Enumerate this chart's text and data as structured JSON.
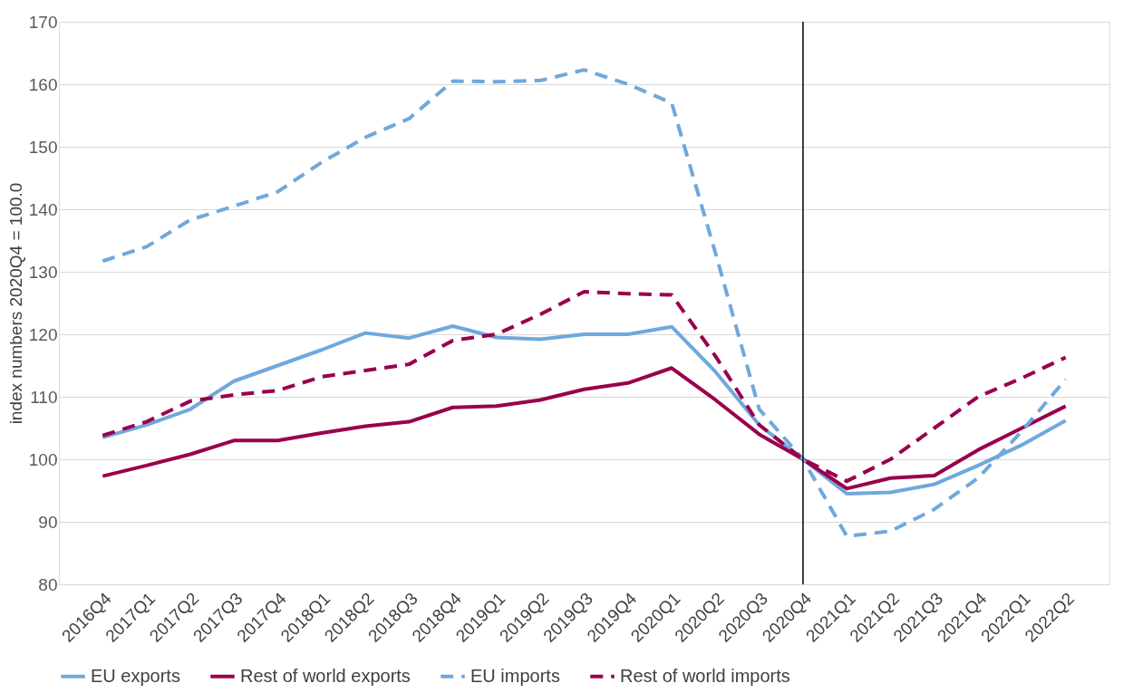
{
  "chart_data": {
    "type": "line",
    "ylabel": "index numbers 2020Q4 = 100.0",
    "categories": [
      "2016Q4",
      "2017Q1",
      "2017Q2",
      "2017Q3",
      "2017Q4",
      "2018Q1",
      "2018Q2",
      "2018Q3",
      "2018Q4",
      "2019Q1",
      "2019Q2",
      "2019Q3",
      "2019Q4",
      "2020Q1",
      "2020Q2",
      "2020Q3",
      "2020Q4",
      "2021Q1",
      "2021Q2",
      "2021Q3",
      "2021Q4",
      "2022Q1",
      "2022Q2"
    ],
    "series": [
      {
        "name": "EU exports",
        "color": "#6fa8dc",
        "line_style": "solid",
        "values": [
          103.5,
          105.5,
          108,
          112.5,
          115,
          117.5,
          120.2,
          119.4,
          121.3,
          119.5,
          119.2,
          120,
          120,
          121.2,
          114,
          105.5,
          100,
          94.5,
          94.7,
          96,
          99,
          102.3,
          106.2
        ]
      },
      {
        "name": "Rest of world exports",
        "color": "#99004d",
        "line_style": "solid",
        "values": [
          97.3,
          99,
          100.8,
          103,
          103,
          104.2,
          105.3,
          106,
          108.3,
          108.5,
          109.5,
          111.2,
          112.2,
          114.6,
          109.5,
          104,
          100,
          95.3,
          97,
          97.4,
          101.5,
          105,
          108.5
        ]
      },
      {
        "name": "EU imports",
        "color": "#6fa8dc",
        "line_style": "dashed",
        "values": [
          131.7,
          134,
          138.3,
          140.5,
          142.8,
          147.5,
          151.5,
          154.5,
          160.5,
          160.4,
          160.6,
          162.3,
          160,
          157,
          133,
          108,
          100,
          87.7,
          88.5,
          92,
          97,
          104.5,
          112.8
        ]
      },
      {
        "name": "Rest of world imports",
        "color": "#99004d",
        "line_style": "dashed",
        "values": [
          103.8,
          106,
          109.3,
          110.3,
          111,
          113.2,
          114.2,
          115.2,
          119,
          120,
          123.2,
          126.8,
          126.5,
          126.3,
          116.5,
          105.5,
          100,
          96.5,
          100,
          105,
          110,
          113,
          116.3
        ]
      }
    ],
    "ylim": [
      80,
      170
    ],
    "yticks": [
      80,
      90,
      100,
      110,
      120,
      130,
      140,
      150,
      160,
      170
    ],
    "grid": "y",
    "legend": "bottom",
    "marker": "none",
    "ref_lines": [
      {
        "axis": "x",
        "value": "2020Q4",
        "color": "#000000",
        "line_style": "solid"
      }
    ]
  }
}
